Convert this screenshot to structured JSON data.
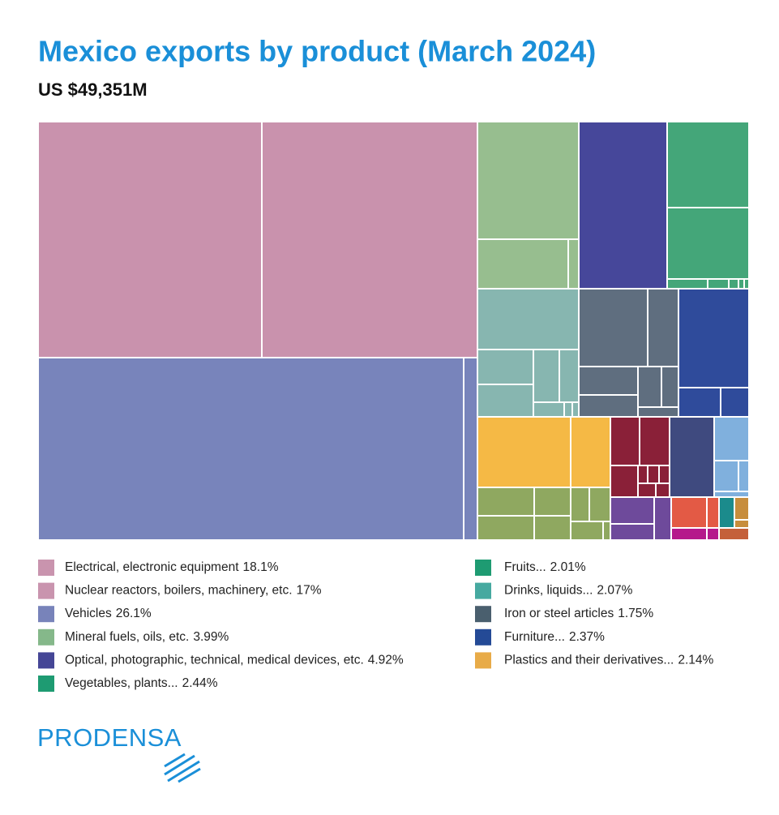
{
  "chart_data": {
    "type": "treemap",
    "title": "Mexico exports by product (March 2024)",
    "subtitle": "US $49,351M",
    "categories": [
      "Electrical, electronic equipment",
      "Nuclear reactors, boilers, machinery, etc.",
      "Vehicles",
      "Mineral fuels, oils, etc.",
      "Optical, photographic, technical, medical devices, etc.",
      "Vegetables, plants...",
      "Fruits...",
      "Drinks, liquids...",
      "Iron or steel articles",
      "Furniture...",
      "Plastics and their derivatives..."
    ],
    "values": [
      18.1,
      17,
      26.1,
      3.99,
      4.92,
      2.44,
      2.01,
      2.07,
      1.75,
      2.37,
      2.14
    ],
    "value_labels": [
      "18.1%",
      "17%",
      "26.1%",
      "3.99%",
      "4.92%",
      "2.44%",
      "2.01%",
      "2.07%",
      "1.75%",
      "2.37%",
      "2.14%"
    ],
    "colors": [
      "#c994ae",
      "#c994ae",
      "#7883ba",
      "#85b88a",
      "#454696",
      "#1e9b72",
      "#1e9b72",
      "#46a9a0",
      "#4a5f6e",
      "#244a96",
      "#e8ab48"
    ],
    "logo": "PRODENSA"
  }
}
